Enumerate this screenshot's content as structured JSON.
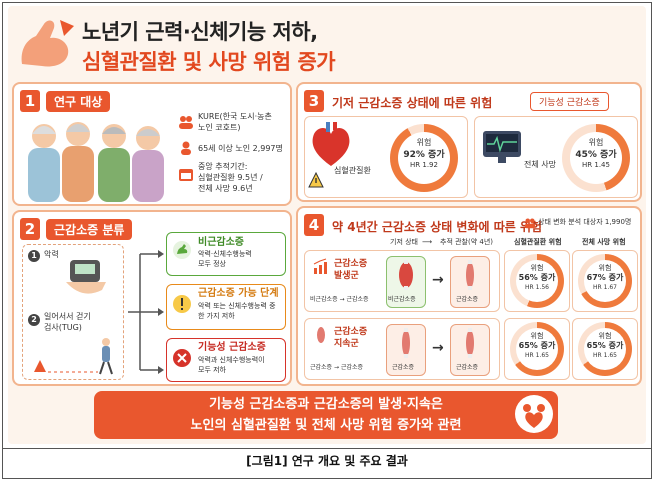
{
  "header": {
    "title_line1": "노년기 근력·신체기능 저하,",
    "title_line2": "심혈관질환 및 사망 위험 증가"
  },
  "section1": {
    "num": "1",
    "title": "연구 대상",
    "cohort": "KURE(한국 도시·농촌",
    "cohort2": "노인 코호트)",
    "subjects": "65세 이상 노인 2,997명",
    "followup_label": "중앙 추적기간:",
    "followup_cvd": "심혈관질환 9.5년 /",
    "followup_death": "전체 사망 9.6년"
  },
  "section2": {
    "num": "2",
    "title": "근감소증 분류",
    "step1_num": "1",
    "step1": "악력",
    "step2_num": "2",
    "step2a": "일어서서 걷기",
    "step2b": "검사(TUG)",
    "classes": [
      {
        "title": "비근감소증",
        "desc1": "악력·신체수행능력",
        "desc2": "모두 정상",
        "color": "#5aa83c"
      },
      {
        "title": "근감소증 가능 단계",
        "desc1": "악력 또는 신체수행능력 중",
        "desc2": "한 가지 저하",
        "color": "#e88a1a"
      },
      {
        "title": "기능성 근감소증",
        "desc1": "악력과 신체수행능력이",
        "desc2": "모두 저하",
        "color": "#d6332a"
      }
    ]
  },
  "section3": {
    "num": "3",
    "title": "기저 근감소증 상태에 따른 위험",
    "tag": "기능성 근감소증",
    "cards": [
      {
        "label": "심혈관질환",
        "risk": "위험",
        "pct": "92% 증가",
        "hr": "HR 1.92",
        "value": 0.92
      },
      {
        "label": "전체 사망",
        "risk": "위험",
        "pct": "45% 증가",
        "hr": "HR 1.45",
        "value": 0.45
      }
    ]
  },
  "section4": {
    "num": "4",
    "title": "약 4년간 근감소증 상태 변화에 따른 위험",
    "note": "상태 변화 분석 대상자 1,990명",
    "col_base": "기저 상태",
    "col_follow": "추적 관찰(약 4년)",
    "col_cvd": "심혈관질환 위험",
    "col_death": "전체 사망 위험",
    "rows": [
      {
        "group1": "근감소증",
        "group2": "발생군",
        "flow": "비근감소증 → 근감소증",
        "from": "비근감소증",
        "to": "근감소증",
        "cvd_risk": "위험",
        "cvd_pct": "56% 증가",
        "cvd_hr": "HR 1.56",
        "cvd_value": 0.56,
        "death_risk": "위험",
        "death_pct": "67% 증가",
        "death_hr": "HR 1.67",
        "death_value": 0.67
      },
      {
        "group1": "근감소증",
        "group2": "지속군",
        "flow": "근감소증 → 근감소증",
        "from": "근감소증",
        "to": "근감소증",
        "cvd_risk": "위험",
        "cvd_pct": "65% 증가",
        "cvd_hr": "HR 1.65",
        "cvd_value": 0.65,
        "death_risk": "위험",
        "death_pct": "65% 증가",
        "death_hr": "HR 1.65",
        "death_value": 0.65
      }
    ]
  },
  "banner": {
    "line1": "기능성 근감소증과 근감소증의 발생·지속은",
    "line2": "노인의 심혈관질환 및 전체 사망 위험 증가와 관련"
  },
  "caption": "[그림1] 연구 개요 및 주요 결과",
  "colors": {
    "accent": "#e9572e",
    "ring": "#ef7a3c",
    "ring_bg": "#fbe1d0"
  }
}
